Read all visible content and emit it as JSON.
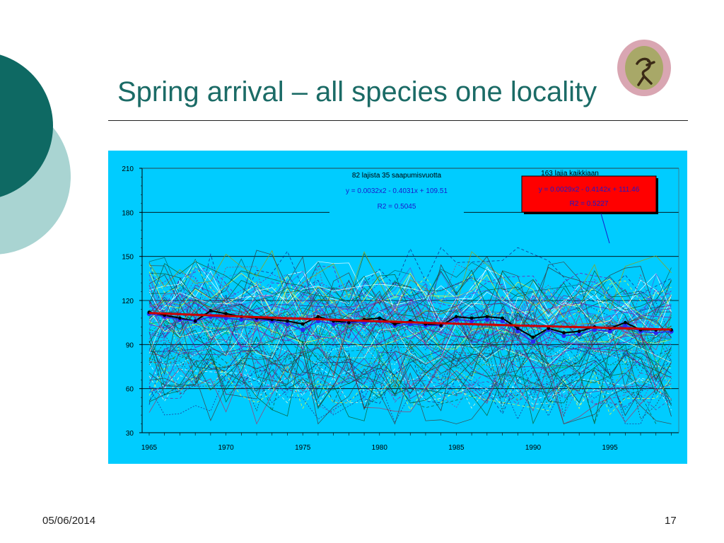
{
  "slide": {
    "title": "Spring arrival – all species one locality",
    "date": "05/06/2014",
    "page_number": "17"
  },
  "colors": {
    "title": "#1b6b66",
    "chart_background": "#00ccff",
    "decoration_dark": "#0e6963",
    "decoration_light": "#a9d4d2",
    "trend_line": "#cc0000",
    "mean_line": "#000000",
    "mean_markers": "#2a2aee",
    "annotation_box": "#ff0000"
  },
  "logo": {
    "icon": "bird-logo-icon"
  },
  "chart_data": {
    "type": "line",
    "xlim": [
      1965,
      1999
    ],
    "ylim": [
      30,
      210
    ],
    "x_ticks": [
      1965,
      1970,
      1975,
      1980,
      1985,
      1990,
      1995
    ],
    "y_ticks": [
      30,
      60,
      90,
      120,
      150,
      180,
      210
    ],
    "grid": true,
    "annotations": [
      {
        "header": "82 lajista 35 saapumisvuotta",
        "equation": "y = 0.0032x2 - 0.4031x + 109.51",
        "r2": "R2 = 0.5045"
      },
      {
        "header": "163 lajia kaikkiaan",
        "equation": "y = 0.0029x2 - 0.4142x + 111.46",
        "r2": "R2 = 0.5227"
      }
    ],
    "mean_series": {
      "x": [
        1965,
        1966,
        1967,
        1968,
        1969,
        1970,
        1971,
        1972,
        1973,
        1974,
        1975,
        1976,
        1977,
        1978,
        1979,
        1980,
        1981,
        1982,
        1983,
        1984,
        1985,
        1986,
        1987,
        1988,
        1989,
        1990,
        1991,
        1992,
        1993,
        1994,
        1995,
        1996,
        1997,
        1998,
        1999
      ],
      "values": [
        112,
        110,
        108,
        106,
        113,
        111,
        109,
        108,
        107,
        106,
        104,
        109,
        106,
        105,
        107,
        108,
        104,
        106,
        104,
        103,
        109,
        108,
        109,
        108,
        101,
        95,
        101,
        98,
        99,
        102,
        101,
        105,
        100,
        100,
        100
      ]
    },
    "highlight_series": {
      "x": [
        1965,
        1966,
        1967,
        1968,
        1969,
        1970,
        1971,
        1972,
        1973,
        1974,
        1975,
        1976,
        1977,
        1978,
        1979,
        1980,
        1981,
        1982,
        1983,
        1984,
        1985,
        1986,
        1987,
        1988,
        1989,
        1990,
        1991,
        1992,
        1993,
        1994,
        1995,
        1996,
        1997,
        1998,
        1999
      ],
      "values": [
        111,
        109,
        107,
        106,
        109,
        108,
        107,
        107,
        106,
        104,
        100,
        106,
        104,
        105,
        105,
        106,
        103,
        104,
        103,
        103,
        107,
        106,
        107,
        106,
        99,
        92,
        100,
        96,
        97,
        100,
        99,
        103,
        99,
        98,
        99
      ]
    },
    "trend_series": {
      "x": [
        1965,
        1970,
        1975,
        1980,
        1985,
        1990,
        1995,
        1999
      ],
      "values": [
        111.5,
        109.4,
        107.6,
        105.8,
        104.2,
        102.7,
        101.3,
        100.2
      ]
    },
    "species_count": 82
  }
}
